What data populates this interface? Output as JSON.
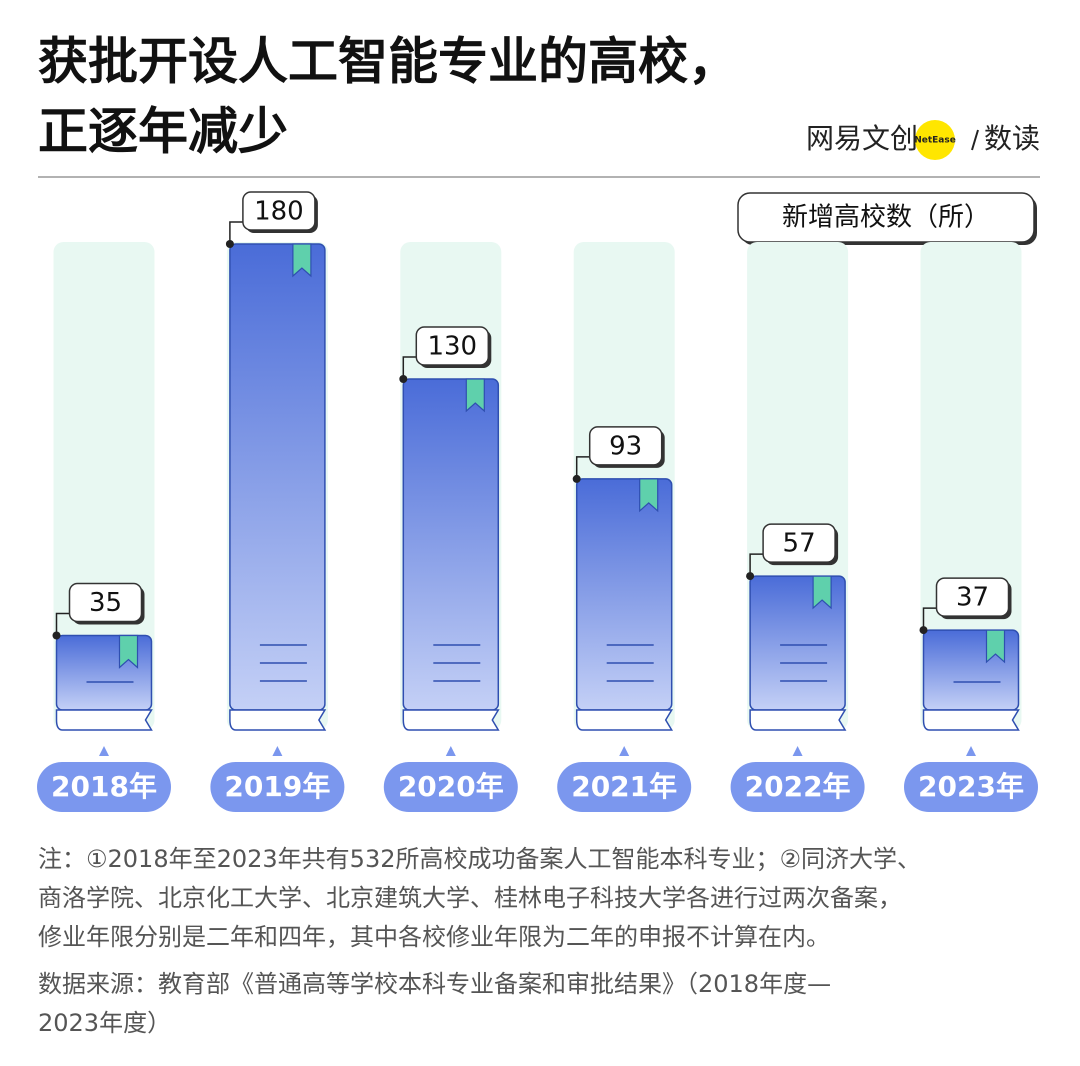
{
  "chart_data": {
    "type": "bar",
    "title_lines": [
      "获批开设人工智能专业的高校，",
      "正逐年减少"
    ],
    "brand": "网易文创",
    "brand_badge": "NetEase",
    "column": "数读",
    "ylabel": "新增高校数（所）",
    "categories": [
      "2018年",
      "2019年",
      "2020年",
      "2021年",
      "2022年",
      "2023年"
    ],
    "values": [
      35,
      180,
      130,
      93,
      57,
      37
    ],
    "color": "#4d6fd9",
    "notes": [
      "注：①2018年至2023年共有532所高校成功备案人工智能本科专业；②同济大学、",
      "商洛学院、北京化工大学、北京建筑大学、桂林电子科技大学各进行过两次备案，",
      "修业年限分别是二年和四年，其中各校修业年限为二年的申报不计算在内。"
    ],
    "source": [
      "数据来源：教育部《普通高等学校本科专业备案和审批结果》（2018年度—",
      "2023年度）"
    ]
  }
}
